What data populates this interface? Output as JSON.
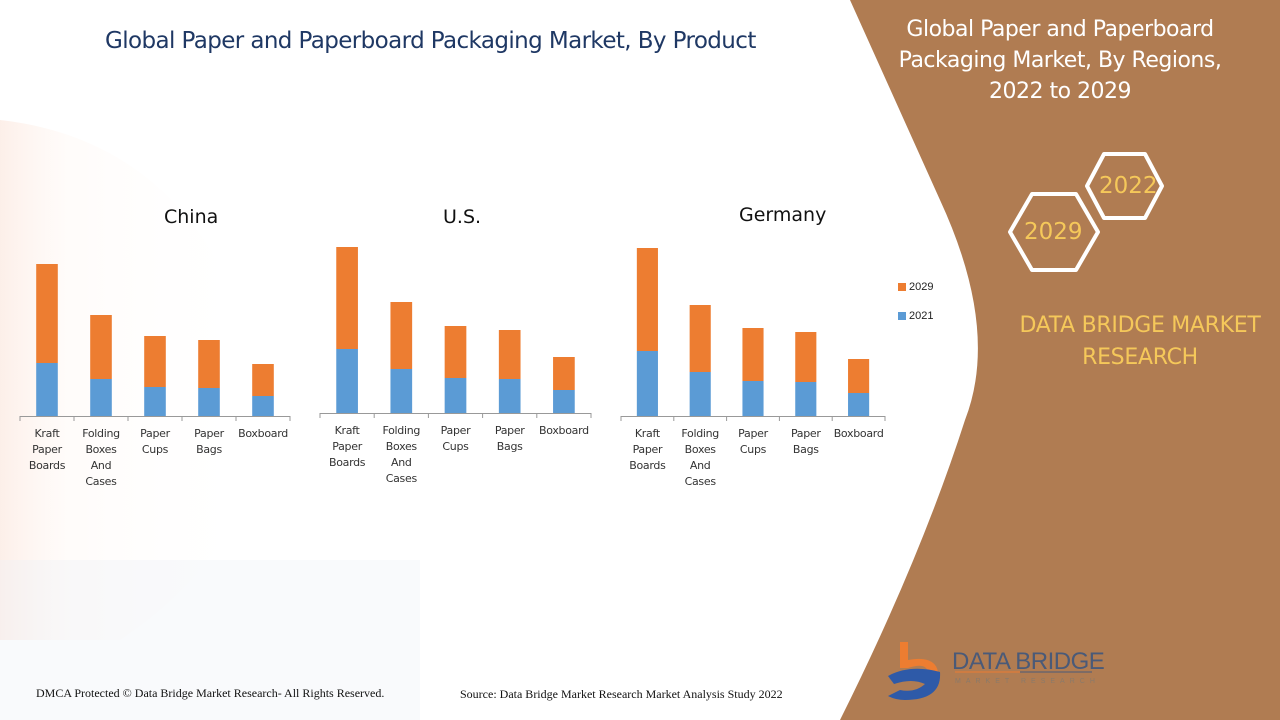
{
  "header": {
    "title": "Global Paper and Paperboard Packaging Market, By Product"
  },
  "side_panel": {
    "title_lines": [
      "Global Paper and Paperboard",
      "Packaging Market, By Regions,",
      "2022 to 2029"
    ],
    "hex_year_1": "2022",
    "hex_year_2": "2029",
    "brand_lines": [
      "DATA BRIDGE MARKET",
      "RESEARCH"
    ]
  },
  "logo": {
    "name": "DATA BRIDGE",
    "tagline": "MARKET RESEARCH"
  },
  "footer": {
    "copyright": "DMCA Protected © Data Bridge Market Research- All Rights Reserved.",
    "source": "Source: Data Bridge Market Research Market Analysis Study 2022"
  },
  "colors": {
    "series_2029": "#ed7d31",
    "series_2021": "#5b9bd5",
    "panel": "#b07c52",
    "title_blue": "#1f3864",
    "gold": "#f5c85a"
  },
  "chart_data": [
    {
      "type": "bar",
      "stacked": true,
      "title": "China",
      "categories": [
        "Kraft Paper Boards",
        "Folding Boxes And Cases",
        "Paper Cups",
        "Paper Bags",
        "Boxboard"
      ],
      "category_lines": [
        [
          "Kraft",
          "Paper",
          "Boards"
        ],
        [
          "Folding",
          "Boxes",
          "And",
          "Cases"
        ],
        [
          "Paper",
          "Cups"
        ],
        [
          "Paper",
          "Bags"
        ],
        [
          "Boxboard"
        ]
      ],
      "series": [
        {
          "name": "2021",
          "values": [
            53,
            37,
            29,
            28,
            20
          ]
        },
        {
          "name": "2029",
          "values": [
            99,
            64,
            51,
            48,
            32
          ]
        }
      ],
      "ylim": [
        0,
        180
      ],
      "legend": "right",
      "grid": false
    },
    {
      "type": "bar",
      "stacked": true,
      "title": "U.S.",
      "categories": [
        "Kraft Paper Boards",
        "Folding Boxes And Cases",
        "Paper Cups",
        "Paper Bags",
        "Boxboard"
      ],
      "category_lines": [
        [
          "Kraft",
          "Paper",
          "Boards"
        ],
        [
          "Folding",
          "Boxes",
          "And Cases"
        ],
        [
          "Paper",
          "Cups"
        ],
        [
          "Paper",
          "Bags"
        ],
        [
          "Boxboard"
        ]
      ],
      "series": [
        {
          "name": "2021",
          "values": [
            64,
            44,
            35,
            34,
            23
          ]
        },
        {
          "name": "2029",
          "values": [
            102,
            67,
            52,
            49,
            33
          ]
        }
      ],
      "ylim": [
        0,
        180
      ],
      "legend": "right",
      "grid": false
    },
    {
      "type": "bar",
      "stacked": true,
      "title": "Germany",
      "categories": [
        "Kraft Paper Boards",
        "Folding Boxes And Cases",
        "Paper Cups",
        "Paper Bags",
        "Boxboard"
      ],
      "category_lines": [
        [
          "Kraft",
          "Paper",
          "Boards"
        ],
        [
          "Folding",
          "Boxes",
          "And",
          "Cases"
        ],
        [
          "Paper",
          "Cups"
        ],
        [
          "Paper",
          "Bags"
        ],
        [
          "Boxboard"
        ]
      ],
      "series": [
        {
          "name": "2021",
          "values": [
            65,
            44,
            35,
            34,
            23
          ]
        },
        {
          "name": "2029",
          "values": [
            103,
            67,
            53,
            50,
            34
          ]
        }
      ],
      "ylim": [
        0,
        180
      ],
      "legend": "right",
      "grid": false
    }
  ],
  "legend": {
    "items": [
      {
        "label": "2029",
        "color": "#ed7d31"
      },
      {
        "label": "2021",
        "color": "#5b9bd5"
      }
    ]
  }
}
